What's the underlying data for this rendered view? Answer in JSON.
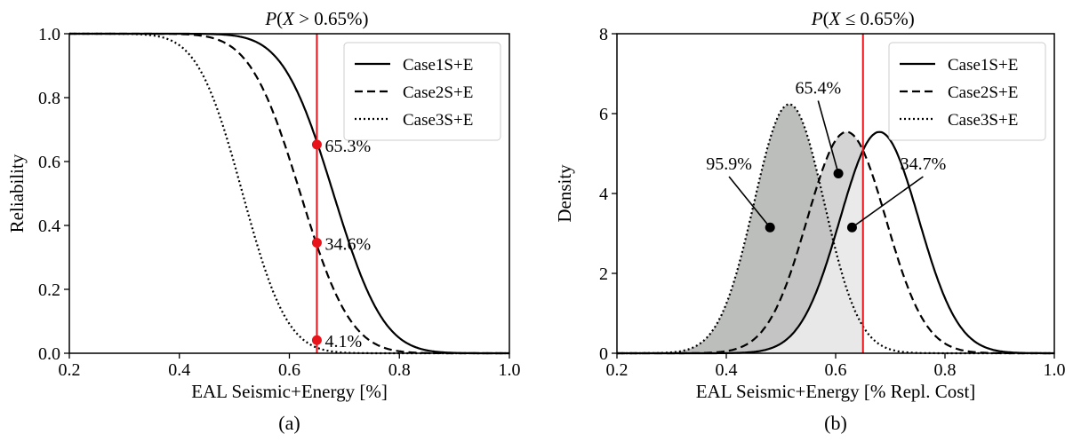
{
  "colors": {
    "threshold": "#e8141b",
    "line": "#000000",
    "fill_case3": "#a6a8a6",
    "fill_case2": "#c6c6c6",
    "fill_case1": "#ececec"
  },
  "chart_data": [
    {
      "type": "line",
      "panel_label": "(a)",
      "title": "P(X > 0.65%)",
      "title_parts": {
        "var": "P",
        "open": "(",
        "x": "X",
        "rest": " > 0.65%)"
      },
      "xlabel": "EAL Seismic+Energy [%]",
      "ylabel": "Reliability",
      "xlim": [
        0.2,
        1.0
      ],
      "ylim": [
        0.0,
        1.0
      ],
      "xticks": [
        "0.2",
        "0.4",
        "0.6",
        "0.8",
        "1.0"
      ],
      "yticks": [
        "0.0",
        "0.2",
        "0.4",
        "0.6",
        "0.8",
        "1.0"
      ],
      "threshold_x": 0.65,
      "legend_position": "top-right",
      "series": [
        {
          "name": "Case1S+E",
          "style": "solid",
          "mu": 0.68,
          "sigma": 0.072
        },
        {
          "name": "Case2S+E",
          "style": "dashed",
          "mu": 0.62,
          "sigma": 0.072
        },
        {
          "name": "Case3S+E",
          "style": "dotted",
          "mu": 0.515,
          "sigma": 0.064
        }
      ],
      "markers": [
        {
          "x": 0.65,
          "y": 0.653,
          "label": "65.3%"
        },
        {
          "x": 0.65,
          "y": 0.346,
          "label": "34.6%"
        },
        {
          "x": 0.65,
          "y": 0.041,
          "label": "4.1%"
        }
      ]
    },
    {
      "type": "area",
      "panel_label": "(b)",
      "title": "P(X ≤ 0.65%)",
      "title_parts": {
        "var": "P",
        "open": "(",
        "x": "X",
        "rest": " ≤ 0.65%)"
      },
      "xlabel": "EAL Seismic+Energy [% Repl. Cost]",
      "ylabel": "Density",
      "xlim": [
        0.2,
        1.0
      ],
      "ylim": [
        0,
        8
      ],
      "xticks": [
        "0.2",
        "0.4",
        "0.6",
        "0.8",
        "1.0"
      ],
      "yticks": [
        "0",
        "2",
        "4",
        "6",
        "8"
      ],
      "threshold_x": 0.65,
      "legend_position": "top-right",
      "series": [
        {
          "name": "Case1S+E",
          "style": "solid",
          "mu": 0.68,
          "sigma": 0.072
        },
        {
          "name": "Case2S+E",
          "style": "dashed",
          "mu": 0.62,
          "sigma": 0.072
        },
        {
          "name": "Case3S+E",
          "style": "dotted",
          "mu": 0.515,
          "sigma": 0.064
        }
      ],
      "annotations": [
        {
          "label": "95.9%",
          "point": [
            0.48,
            3.15
          ],
          "text_at": [
            0.405,
            4.6
          ]
        },
        {
          "label": "65.4%",
          "point": [
            0.605,
            4.5
          ],
          "text_at": [
            0.568,
            6.5
          ]
        },
        {
          "label": "34.7%",
          "point": [
            0.63,
            3.15
          ],
          "text_at": [
            0.76,
            4.6
          ]
        }
      ]
    }
  ]
}
